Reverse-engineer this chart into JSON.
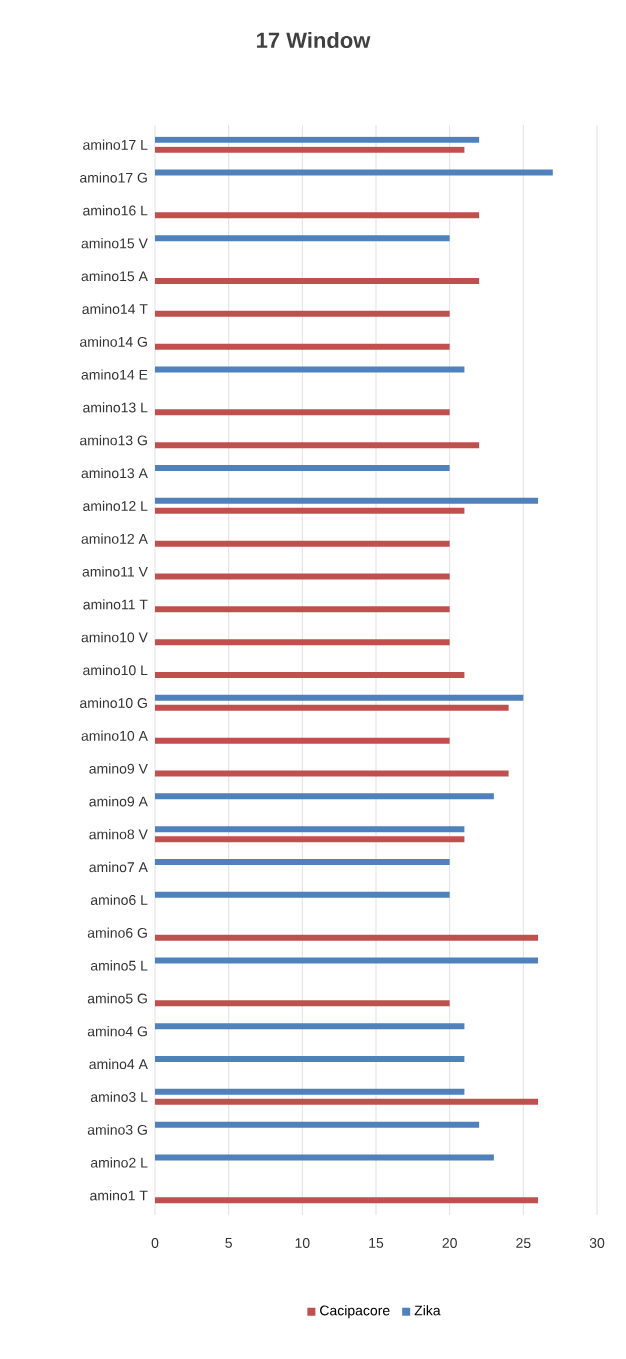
{
  "chart_data": {
    "type": "bar",
    "orientation": "horizontal",
    "title": "17 Window",
    "categories": [
      "amino17 L",
      "amino17 G",
      "amino16  L",
      "amino15  V",
      "amino15 A",
      "amino14  T",
      "amino14 G",
      "amino14  E",
      "amino13  L",
      "amino13 G",
      "amino13 A",
      "amino12  L",
      "amino12 A",
      "amino11  V",
      "amino11  T",
      "amino10  V",
      "amino10  L",
      "amino10 G",
      "amino10 A",
      "amino9  V",
      "amino9 A",
      "amino8  V",
      "amino7 A",
      "amino6  L",
      "amino6 G",
      "amino5  L",
      "amino5 G",
      "amino4 G",
      "amino4 A",
      "amino3  L",
      "amino3 G",
      "amino2  L",
      "amino1 T"
    ],
    "series": [
      {
        "name": "Cacipacore",
        "color": "#c0504d",
        "values": [
          21,
          null,
          22,
          null,
          22,
          20,
          20,
          null,
          20,
          22,
          null,
          21,
          20,
          20,
          20,
          20,
          21,
          24,
          20,
          24,
          null,
          21,
          null,
          null,
          26,
          null,
          20,
          null,
          null,
          26,
          null,
          null,
          26
        ]
      },
      {
        "name": "Zika",
        "color": "#4f81bd",
        "values": [
          22,
          27,
          null,
          20,
          null,
          null,
          null,
          21,
          null,
          null,
          20,
          26,
          null,
          null,
          null,
          null,
          null,
          25,
          null,
          null,
          23,
          21,
          20,
          20,
          null,
          26,
          null,
          21,
          21,
          21,
          22,
          23,
          null
        ]
      }
    ],
    "xlim": [
      0,
      30
    ],
    "xticks": [
      0,
      5,
      10,
      15,
      20,
      25,
      30
    ],
    "grid": "x",
    "legend": "bottom"
  }
}
